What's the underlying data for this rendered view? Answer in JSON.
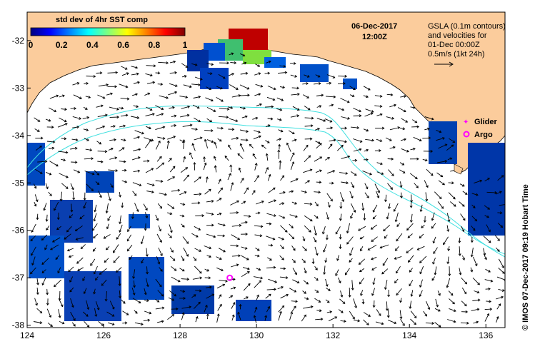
{
  "map": {
    "date": "06-Dec-2017",
    "time": "12:00Z",
    "colorbar": {
      "title": "std dev of 4hr SST comp",
      "ticks": [
        "0",
        "0.2",
        "0.4",
        "0.6",
        "0.8",
        "1"
      ],
      "colors": [
        "#00007f",
        "#0000ff",
        "#007fff",
        "#00ffff",
        "#7fff7f",
        "#ffff00",
        "#ff7f00",
        "#ff0000",
        "#7f0000"
      ]
    },
    "gsla_note": [
      "GSLA (0.1m contours)",
      "and velocities for",
      "01-Dec 00:00Z",
      "0.5m/s (1kt 24h)"
    ],
    "legend": {
      "glider": "Glider",
      "argo": "Argo",
      "glider_color": "#ff00ff",
      "argo_color": "#ff00ff"
    },
    "credit": "© IMOS 07-Dec-2017 09:19 Hobart Time",
    "x_ticks": [
      "124",
      "126",
      "128",
      "130",
      "132",
      "134",
      "136"
    ],
    "y_ticks": [
      "-32",
      "-33",
      "-34",
      "-35",
      "-36",
      "-37",
      "-38"
    ],
    "colors": {
      "land": "#fbcc9c",
      "contour": "#40e0e0",
      "frame": "#000000"
    },
    "argo_float": {
      "lon": 129.3,
      "lat": -37.0
    }
  }
}
